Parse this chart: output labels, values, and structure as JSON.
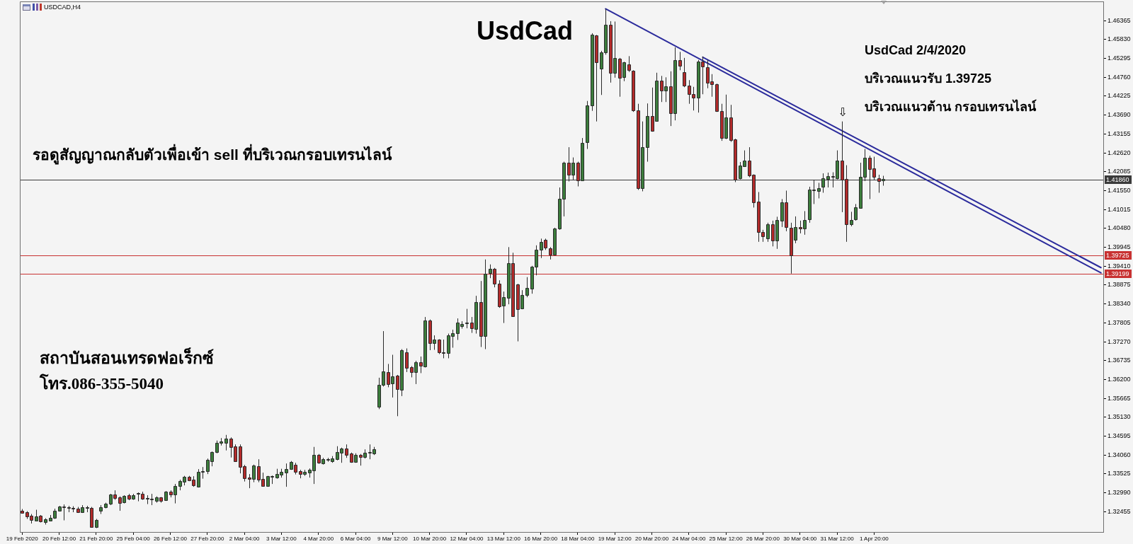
{
  "chart_data": {
    "type": "candlestick",
    "title": "UsdCad",
    "annotations": [
      "USDCAD,H4",
      "UsdCad 2/4/2020",
      "บริเวณแนวรับ 1.39725",
      "บริเวณแนวต้าน กรอบเทรนไลน์",
      "รอดูสัญญาณกลับตัวเพื่อเข้า sell ที่บริเวณกรอบเทรนไลน์",
      "สถาบันสอนเทรดฟอเร็กซ์",
      "โทร.086-355-5040",
      "⇩"
    ],
    "categories": [
      "19 Feb 2020",
      null,
      null,
      null,
      null,
      null,
      null,
      null,
      "20 Feb 12:00",
      null,
      null,
      null,
      null,
      null,
      null,
      null,
      "21 Feb 20:00",
      null,
      null,
      null,
      null,
      null,
      null,
      null,
      "25 Feb 04:00",
      null,
      null,
      null,
      null,
      null,
      null,
      null,
      "26 Feb 12:00",
      null,
      null,
      null,
      null,
      null,
      null,
      null,
      "27 Feb 20:00",
      null,
      null,
      null,
      null,
      null,
      null,
      null,
      "2 Mar 04:00",
      null,
      null,
      null,
      null,
      null,
      null,
      null,
      "3 Mar 12:00",
      null,
      null,
      null,
      null,
      null,
      null,
      null,
      "4 Mar 20:00",
      null,
      null,
      null,
      null,
      null,
      null,
      null,
      "6 Mar 04:00",
      null,
      null,
      null,
      null,
      null,
      null,
      null,
      "9 Mar 12:00",
      null,
      null,
      null,
      null,
      null,
      null,
      null,
      "10 Mar 20:00",
      null,
      null,
      null,
      null,
      null,
      null,
      null,
      "12 Mar 04:00",
      null,
      null,
      null,
      null,
      null,
      null,
      null,
      "13 Mar 12:00",
      null,
      null,
      null,
      null,
      null,
      null,
      null,
      "16 Mar 20:00",
      null,
      null,
      null,
      null,
      null,
      null,
      null,
      "18 Mar 04:00",
      null,
      null,
      null,
      null,
      null,
      null,
      null,
      "19 Mar 12:00",
      null,
      null,
      null,
      null,
      null,
      null,
      null,
      "20 Mar 20:00",
      null,
      null,
      null,
      null,
      null,
      null,
      null,
      "24 Mar 04:00",
      null,
      null,
      null,
      null,
      null,
      null,
      null,
      "25 Mar 12:00",
      null,
      null,
      null,
      null,
      null,
      null,
      null,
      "26 Mar 20:00",
      null,
      null,
      null,
      null,
      null,
      null,
      null,
      "30 Mar 04:00",
      null,
      null,
      null,
      null,
      null,
      null,
      null,
      "31 Mar 12:00",
      null,
      null,
      null,
      null,
      null,
      null,
      null,
      "1 Apr 20:00",
      null,
      null,
      null,
      null,
      null,
      null,
      null,
      null,
      null,
      null,
      null,
      null,
      null,
      null,
      null,
      null,
      null,
      null,
      null,
      null,
      null,
      null,
      null,
      null,
      null,
      null,
      null,
      null,
      null,
      null,
      null,
      null,
      null,
      null,
      null,
      null,
      null,
      null,
      null,
      null,
      null,
      null,
      null,
      null,
      null,
      null,
      null,
      null,
      null
    ],
    "ohlc": [
      [
        1.3249,
        1.3253,
        1.324,
        1.3242
      ],
      [
        1.3244,
        1.3247,
        1.3225,
        1.3232
      ],
      [
        1.3234,
        1.3239,
        1.3212,
        1.3222
      ],
      [
        1.322,
        1.3251,
        1.3219,
        1.3232
      ],
      [
        1.3234,
        1.3236,
        1.3215,
        1.3217
      ],
      [
        1.3215,
        1.3227,
        1.3209,
        1.3224
      ],
      [
        1.3221,
        1.3236,
        1.3219,
        1.3229
      ],
      [
        1.3227,
        1.3254,
        1.3225,
        1.3248
      ],
      [
        1.3247,
        1.3262,
        1.3246,
        1.326
      ],
      [
        1.326,
        1.3266,
        1.3221,
        1.3257
      ],
      [
        1.3258,
        1.3262,
        1.3244,
        1.3256
      ],
      [
        1.3257,
        1.3261,
        1.3244,
        1.3255
      ],
      [
        1.3255,
        1.3259,
        1.3242,
        1.3244
      ],
      [
        1.3244,
        1.3264,
        1.3242,
        1.3258
      ],
      [
        1.3257,
        1.3262,
        1.3244,
        1.3258
      ],
      [
        1.3257,
        1.3259,
        1.32,
        1.3203
      ],
      [
        1.3203,
        1.3225,
        1.3199,
        1.3223
      ],
      [
        1.3249,
        1.3264,
        1.3239,
        1.3259
      ],
      [
        1.3258,
        1.3271,
        1.3255,
        1.3269
      ],
      [
        1.3267,
        1.3296,
        1.3264,
        1.3294
      ],
      [
        1.3294,
        1.3306,
        1.3279,
        1.3284
      ],
      [
        1.3287,
        1.3289,
        1.3248,
        1.3271
      ],
      [
        1.3271,
        1.3292,
        1.3269,
        1.329
      ],
      [
        1.3292,
        1.3296,
        1.3278,
        1.3281
      ],
      [
        1.3281,
        1.3296,
        1.3279,
        1.3292
      ],
      [
        1.3296,
        1.33,
        1.3275,
        1.3298
      ],
      [
        1.3297,
        1.3302,
        1.3279,
        1.3282
      ],
      [
        1.3282,
        1.3292,
        1.3267,
        1.3284
      ],
      [
        1.3282,
        1.3296,
        1.3264,
        1.3281
      ],
      [
        1.3276,
        1.3289,
        1.3271,
        1.3286
      ],
      [
        1.3286,
        1.3287,
        1.3271,
        1.3276
      ],
      [
        1.3278,
        1.3304,
        1.3276,
        1.3302
      ],
      [
        1.3302,
        1.3306,
        1.3286,
        1.3294
      ],
      [
        1.3294,
        1.3324,
        1.3269,
        1.3319
      ],
      [
        1.3317,
        1.3336,
        1.3306,
        1.3332
      ],
      [
        1.3329,
        1.3347,
        1.332,
        1.3344
      ],
      [
        1.3344,
        1.3347,
        1.3332,
        1.3334
      ],
      [
        1.3336,
        1.3346,
        1.3316,
        1.332
      ],
      [
        1.3317,
        1.3366,
        1.3314,
        1.3359
      ],
      [
        1.3359,
        1.3372,
        1.3339,
        1.336
      ],
      [
        1.3359,
        1.3396,
        1.3352,
        1.3392
      ],
      [
        1.3387,
        1.3416,
        1.3374,
        1.3414
      ],
      [
        1.3414,
        1.3447,
        1.3411,
        1.344
      ],
      [
        1.3439,
        1.3454,
        1.3433,
        1.3444
      ],
      [
        1.3441,
        1.3463,
        1.3419,
        1.3453
      ],
      [
        1.3453,
        1.3456,
        1.3399,
        1.3429
      ],
      [
        1.3431,
        1.3436,
        1.3387,
        1.3389
      ],
      [
        1.3431,
        1.3436,
        1.3354,
        1.3372
      ],
      [
        1.3374,
        1.3378,
        1.3331,
        1.334
      ],
      [
        1.3342,
        1.3352,
        1.3312,
        1.3338
      ],
      [
        1.3338,
        1.3379,
        1.3329,
        1.3376
      ],
      [
        1.3374,
        1.3394,
        1.3329,
        1.3336
      ],
      [
        1.3338,
        1.3356,
        1.3318,
        1.3318
      ],
      [
        1.3318,
        1.3347,
        1.3316,
        1.3346
      ],
      [
        1.3345,
        1.3348,
        1.3324,
        1.3347
      ],
      [
        1.3342,
        1.3367,
        1.3339,
        1.3352
      ],
      [
        1.335,
        1.3367,
        1.3342,
        1.3359
      ],
      [
        1.3357,
        1.3382,
        1.3316,
        1.3367
      ],
      [
        1.3366,
        1.3389,
        1.3364,
        1.3386
      ],
      [
        1.3379,
        1.3384,
        1.3351,
        1.3359
      ],
      [
        1.336,
        1.3364,
        1.334,
        1.3351
      ],
      [
        1.3351,
        1.3364,
        1.3347,
        1.3358
      ],
      [
        1.3356,
        1.3368,
        1.3342,
        1.3364
      ],
      [
        1.3362,
        1.3429,
        1.3324,
        1.3406
      ],
      [
        1.3406,
        1.3409,
        1.3381,
        1.3384
      ],
      [
        1.3381,
        1.3398,
        1.3379,
        1.3394
      ],
      [
        1.3392,
        1.3398,
        1.3387,
        1.3394
      ],
      [
        1.3389,
        1.3403,
        1.3384,
        1.3397
      ],
      [
        1.3394,
        1.3431,
        1.3391,
        1.3414
      ],
      [
        1.3413,
        1.3427,
        1.3384,
        1.3425
      ],
      [
        1.3425,
        1.3436,
        1.3398,
        1.3407
      ],
      [
        1.341,
        1.3413,
        1.3384,
        1.3386
      ],
      [
        1.3386,
        1.3411,
        1.3384,
        1.3406
      ],
      [
        1.3406,
        1.3409,
        1.3376,
        1.3399
      ],
      [
        1.3401,
        1.3422,
        1.3396,
        1.3413
      ],
      [
        1.3413,
        1.3436,
        1.3394,
        1.3415
      ],
      [
        1.3409,
        1.3429,
        1.3406,
        1.3422
      ],
      [
        1.3543,
        1.3625,
        1.3536,
        1.3605
      ],
      [
        1.3603,
        1.3757,
        1.36,
        1.3642
      ],
      [
        1.3641,
        1.3664,
        1.3598,
        1.3607
      ],
      [
        1.3607,
        1.369,
        1.3569,
        1.3628
      ],
      [
        1.363,
        1.3633,
        1.3516,
        1.3591
      ],
      [
        1.3591,
        1.3706,
        1.3573,
        1.3703
      ],
      [
        1.3698,
        1.3708,
        1.3641,
        1.3653
      ],
      [
        1.3654,
        1.3658,
        1.3626,
        1.364
      ],
      [
        1.364,
        1.3673,
        1.3607,
        1.3669
      ],
      [
        1.3668,
        1.3685,
        1.3638,
        1.3658
      ],
      [
        1.3656,
        1.3797,
        1.3654,
        1.3787
      ],
      [
        1.3787,
        1.379,
        1.3703,
        1.3723
      ],
      [
        1.3724,
        1.3745,
        1.3704,
        1.3734
      ],
      [
        1.3733,
        1.3734,
        1.3692,
        1.3696
      ],
      [
        1.3697,
        1.3733,
        1.368,
        1.3695
      ],
      [
        1.3695,
        1.375,
        1.368,
        1.3745
      ],
      [
        1.3743,
        1.3761,
        1.371,
        1.3752
      ],
      [
        1.375,
        1.3793,
        1.3732,
        1.3781
      ],
      [
        1.3772,
        1.3785,
        1.3764,
        1.3778
      ],
      [
        1.3778,
        1.382,
        1.3765,
        1.3781
      ],
      [
        1.3781,
        1.3797,
        1.3752,
        1.3765
      ],
      [
        1.3763,
        1.3857,
        1.375,
        1.3839
      ],
      [
        1.3839,
        1.3899,
        1.3712,
        1.3743
      ],
      [
        1.3743,
        1.396,
        1.3706,
        1.392
      ],
      [
        1.3921,
        1.3946,
        1.3907,
        1.3934
      ],
      [
        1.3934,
        1.3936,
        1.3881,
        1.3892
      ],
      [
        1.3892,
        1.3901,
        1.3823,
        1.3827
      ],
      [
        1.3828,
        1.3869,
        1.378,
        1.3853
      ],
      [
        1.3852,
        1.3995,
        1.3833,
        1.395
      ],
      [
        1.395,
        1.3979,
        1.3799,
        1.38
      ],
      [
        1.389,
        1.3891,
        1.3728,
        1.382
      ],
      [
        1.382,
        1.3873,
        1.3819,
        1.3859
      ],
      [
        1.3859,
        1.391,
        1.3853,
        1.3879
      ],
      [
        1.3877,
        1.3942,
        1.3863,
        1.394
      ],
      [
        1.3939,
        1.4,
        1.3915,
        1.3988
      ],
      [
        1.3987,
        1.4019,
        1.3964,
        1.401
      ],
      [
        1.4015,
        1.4019,
        1.3987,
        1.3992
      ],
      [
        1.3992,
        1.3995,
        1.396,
        1.3974
      ],
      [
        1.3974,
        1.405,
        1.3974,
        1.4048
      ],
      [
        1.4047,
        1.4164,
        1.4044,
        1.4131
      ],
      [
        1.4131,
        1.4237,
        1.4082,
        1.4234
      ],
      [
        1.4234,
        1.4278,
        1.4181,
        1.4199
      ],
      [
        1.4201,
        1.4249,
        1.4186,
        1.4235
      ],
      [
        1.4235,
        1.4237,
        1.4167,
        1.4184
      ],
      [
        1.4184,
        1.4304,
        1.4182,
        1.4291
      ],
      [
        1.4291,
        1.4409,
        1.4273,
        1.4396
      ],
      [
        1.4396,
        1.4601,
        1.4381,
        1.4596
      ],
      [
        1.4595,
        1.4596,
        1.4351,
        1.4518
      ],
      [
        1.45,
        1.4551,
        1.4426,
        1.4547
      ],
      [
        1.4547,
        1.467,
        1.454,
        1.4625
      ],
      [
        1.4625,
        1.4635,
        1.4461,
        1.4488
      ],
      [
        1.4489,
        1.4634,
        1.4475,
        1.4531
      ],
      [
        1.4529,
        1.4531,
        1.4421,
        1.4475
      ],
      [
        1.4475,
        1.452,
        1.4465,
        1.4518
      ],
      [
        1.4513,
        1.4536,
        1.4491,
        1.4496
      ],
      [
        1.4495,
        1.4496,
        1.4378,
        1.4382
      ],
      [
        1.4382,
        1.4401,
        1.4157,
        1.4161
      ],
      [
        1.4162,
        1.4351,
        1.4153,
        1.4278
      ],
      [
        1.4278,
        1.4402,
        1.4237,
        1.4366
      ],
      [
        1.4366,
        1.4447,
        1.4322,
        1.4324
      ],
      [
        1.4353,
        1.4489,
        1.4351,
        1.4467
      ],
      [
        1.4467,
        1.448,
        1.4406,
        1.4438
      ],
      [
        1.4438,
        1.4476,
        1.4406,
        1.4451
      ],
      [
        1.4451,
        1.4493,
        1.4338,
        1.4374
      ],
      [
        1.4374,
        1.4561,
        1.4354,
        1.4525
      ],
      [
        1.4525,
        1.4548,
        1.4496,
        1.4509
      ],
      [
        1.4491,
        1.4531,
        1.4448,
        1.4453
      ],
      [
        1.4453,
        1.4468,
        1.4401,
        1.4429
      ],
      [
        1.4429,
        1.4449,
        1.4382,
        1.4418
      ],
      [
        1.4418,
        1.4525,
        1.4376,
        1.452
      ],
      [
        1.452,
        1.4535,
        1.4428,
        1.4505
      ],
      [
        1.4505,
        1.4525,
        1.4445,
        1.4461
      ],
      [
        1.4465,
        1.4485,
        1.4421,
        1.4456
      ],
      [
        1.4456,
        1.4458,
        1.4378,
        1.438
      ],
      [
        1.438,
        1.4401,
        1.4296,
        1.4304
      ],
      [
        1.4304,
        1.4427,
        1.4301,
        1.4362
      ],
      [
        1.4362,
        1.4398,
        1.4293,
        1.4298
      ],
      [
        1.4301,
        1.4302,
        1.4179,
        1.4187
      ],
      [
        1.4189,
        1.4236,
        1.4187,
        1.4226
      ],
      [
        1.4224,
        1.4269,
        1.4222,
        1.424
      ],
      [
        1.424,
        1.4278,
        1.4193,
        1.4197
      ],
      [
        1.42,
        1.4201,
        1.4107,
        1.4122
      ],
      [
        1.4124,
        1.4151,
        1.401,
        1.4037
      ],
      [
        1.4037,
        1.4044,
        1.401,
        1.4024
      ],
      [
        1.4019,
        1.4064,
        1.401,
        1.406
      ],
      [
        1.406,
        1.407,
        1.3997,
        1.4014
      ],
      [
        1.4014,
        1.4081,
        1.399,
        1.4072
      ],
      [
        1.4068,
        1.4131,
        1.4052,
        1.4121
      ],
      [
        1.4121,
        1.4155,
        1.404,
        1.405
      ],
      [
        1.405,
        1.4064,
        1.392,
        1.3972
      ],
      [
        1.4015,
        1.4082,
        1.4006,
        1.4052
      ],
      [
        1.4052,
        1.407,
        1.4034,
        1.4048
      ],
      [
        1.4048,
        1.4097,
        1.403,
        1.4072
      ],
      [
        1.4072,
        1.4166,
        1.4064,
        1.4157
      ],
      [
        1.4157,
        1.4186,
        1.4117,
        1.4155
      ],
      [
        1.4153,
        1.4177,
        1.4133,
        1.4162
      ],
      [
        1.4166,
        1.4204,
        1.4149,
        1.4191
      ],
      [
        1.4189,
        1.4206,
        1.4164,
        1.4197
      ],
      [
        1.4196,
        1.4207,
        1.4164,
        1.4194
      ],
      [
        1.4191,
        1.4269,
        1.4187,
        1.4241
      ],
      [
        1.4241,
        1.4351,
        1.4094,
        1.4187
      ],
      [
        1.4187,
        1.4227,
        1.401,
        1.4059
      ],
      [
        1.4059,
        1.4095,
        1.4054,
        1.4072
      ],
      [
        1.4072,
        1.4117,
        1.407,
        1.4107
      ],
      [
        1.4107,
        1.4234,
        1.4104,
        1.4195
      ],
      [
        1.4195,
        1.4273,
        1.4182,
        1.4249
      ],
      [
        1.4249,
        1.4254,
        1.4131,
        1.4217
      ],
      [
        1.4219,
        1.4251,
        1.4186,
        1.4194
      ],
      [
        1.4191,
        1.42,
        1.4149,
        1.4182
      ],
      [
        1.4182,
        1.4197,
        1.4169,
        1.4187
      ],
      null,
      null,
      null,
      null,
      null,
      null,
      null,
      null,
      null,
      null,
      null,
      null,
      null,
      null,
      null,
      null,
      null,
      null,
      null,
      null,
      null,
      null,
      null,
      null,
      null,
      null,
      null,
      null,
      null,
      null,
      null,
      null,
      null,
      null,
      null,
      null,
      null,
      null,
      null,
      null,
      null,
      null,
      null,
      null,
      null,
      null,
      null
    ],
    "colors": [
      "#b22b2b",
      "#b22b2b",
      "#b22b2b",
      "#3c7d3c",
      "#b22b2b",
      "#3c7d3c",
      "#3c7d3c",
      "#3c7d3c",
      "#3c7d3c",
      "#b22b2b",
      "#b22b2b",
      "#b22b2b",
      "#b22b2b",
      "#3c7d3c",
      "#3c7d3c",
      "#b22b2b",
      "#3c7d3c",
      "#3c7d3c",
      "#3c7d3c",
      "#3c7d3c",
      "#b22b2b",
      "#b22b2b",
      "#3c7d3c",
      "#b22b2b",
      "#3c7d3c",
      "#3c7d3c",
      "#b22b2b",
      "#3c7d3c",
      "#b22b2b",
      "#3c7d3c",
      "#b22b2b",
      "#3c7d3c",
      "#b22b2b",
      "#3c7d3c",
      "#3c7d3c",
      "#3c7d3c",
      "#b22b2b",
      "#b22b2b",
      "#3c7d3c",
      "#3c7d3c",
      "#3c7d3c",
      "#3c7d3c",
      "#3c7d3c",
      "#3c7d3c",
      "#3c7d3c",
      "#b22b2b",
      "#b22b2b",
      "#b22b2b",
      "#b22b2b",
      "#b22b2b",
      "#3c7d3c",
      "#b22b2b",
      "#b22b2b",
      "#3c7d3c",
      "#3c7d3c",
      "#3c7d3c",
      "#3c7d3c",
      "#3c7d3c",
      "#3c7d3c",
      "#b22b2b",
      "#b22b2b",
      "#3c7d3c",
      "#3c7d3c",
      "#3c7d3c",
      "#b22b2b",
      "#3c7d3c",
      "#3c7d3c",
      "#3c7d3c",
      "#3c7d3c",
      "#3c7d3c",
      "#b22b2b",
      "#b22b2b",
      "#3c7d3c",
      "#b22b2b",
      "#3c7d3c",
      "#3c7d3c",
      "#3c7d3c",
      "#3c7d3c",
      "#3c7d3c",
      "#b22b2b",
      "#3c7d3c",
      "#b22b2b",
      "#3c7d3c",
      "#b22b2b",
      "#b22b2b",
      "#3c7d3c",
      "#b22b2b",
      "#3c7d3c",
      "#b22b2b",
      "#3c7d3c",
      "#b22b2b",
      "#b22b2b",
      "#3c7d3c",
      "#3c7d3c",
      "#3c7d3c",
      "#3c7d3c",
      "#3c7d3c",
      "#b22b2b",
      "#3c7d3c",
      "#b22b2b",
      "#3c7d3c",
      "#3c7d3c",
      "#b22b2b",
      "#b22b2b",
      "#3c7d3c",
      "#3c7d3c",
      "#b22b2b",
      "#b22b2b",
      "#3c7d3c",
      "#3c7d3c",
      "#3c7d3c",
      "#3c7d3c",
      "#3c7d3c",
      "#b22b2b",
      "#b22b2b",
      "#3c7d3c",
      "#3c7d3c",
      "#3c7d3c",
      "#b22b2b",
      "#3c7d3c",
      "#b22b2b",
      "#3c7d3c",
      "#3c7d3c",
      "#3c7d3c",
      "#b22b2b",
      "#3c7d3c",
      "#3c7d3c",
      "#b22b2b",
      "#3c7d3c",
      "#b22b2b",
      "#3c7d3c",
      "#b22b2b",
      "#b22b2b",
      "#b22b2b",
      "#3c7d3c",
      "#3c7d3c",
      "#b22b2b",
      "#3c7d3c",
      "#b22b2b",
      "#3c7d3c",
      "#b22b2b",
      "#3c7d3c",
      "#b22b2b",
      "#b22b2b",
      "#b22b2b",
      "#b22b2b",
      "#3c7d3c",
      "#b22b2b",
      "#b22b2b",
      "#b22b2b",
      "#b22b2b",
      "#b22b2b",
      "#3c7d3c",
      "#b22b2b",
      "#b22b2b",
      "#3c7d3c",
      "#3c7d3c",
      "#b22b2b",
      "#b22b2b",
      "#b22b2b",
      "#b22b2b",
      "#3c7d3c",
      "#b22b2b",
      "#3c7d3c",
      "#3c7d3c",
      "#b22b2b",
      "#b22b2b",
      "#3c7d3c",
      "#b22b2b",
      "#3c7d3c",
      "#3c7d3c",
      "#b22b2b",
      "#3c7d3c",
      "#3c7d3c",
      "#3c7d3c",
      "#b22b2b",
      "#3c7d3c",
      "#b22b2b",
      "#b22b2b",
      "#3c7d3c",
      "#3c7d3c",
      "#3c7d3c",
      "#3c7d3c",
      "#b22b2b",
      "#b22b2b",
      "#b22b2b",
      "#3c7d3c",
      null,
      null,
      null,
      null,
      null,
      null,
      null,
      null,
      null,
      null,
      null,
      null,
      null,
      null,
      null,
      null,
      null,
      null,
      null,
      null,
      null,
      null,
      null,
      null,
      null,
      null,
      null,
      null,
      null,
      null,
      null,
      null,
      null,
      null,
      null,
      null,
      null,
      null,
      null,
      null,
      null,
      null,
      null,
      null,
      null,
      null,
      null
    ],
    "series": [
      {
        "type": "line",
        "color": "#2b2b9c",
        "values": [
          null,
          null,
          null,
          null,
          null,
          null,
          null,
          null,
          null,
          null,
          null,
          null,
          null,
          null,
          null,
          null,
          null,
          null,
          null,
          null,
          null,
          null,
          null,
          null,
          null,
          null,
          null,
          null,
          null,
          null,
          null,
          null,
          null,
          null,
          null,
          null,
          null,
          null,
          null,
          null,
          null,
          null,
          null,
          null,
          null,
          null,
          null,
          null,
          null,
          null,
          null,
          null,
          null,
          null,
          null,
          null,
          null,
          null,
          null,
          null,
          null,
          null,
          null,
          null,
          null,
          null,
          null,
          null,
          null,
          null,
          null,
          null,
          null,
          null,
          null,
          null,
          null,
          null,
          null,
          null,
          null,
          null,
          null,
          null,
          null,
          null,
          null,
          null,
          null,
          null,
          null,
          null,
          null,
          null,
          null,
          null,
          null,
          null,
          null,
          null,
          null,
          null,
          null,
          null,
          null,
          null,
          null,
          null,
          null,
          null,
          null,
          null,
          null,
          null,
          null,
          null,
          null,
          null,
          null,
          null,
          null,
          null,
          null,
          null,
          null,
          null,
          1.467,
          null,
          null,
          null,
          null,
          null,
          null,
          null,
          null,
          null,
          null,
          null,
          null,
          null,
          null,
          null,
          null,
          null,
          null,
          null,
          null,
          null,
          null,
          null,
          null,
          null,
          null,
          null,
          null,
          null,
          null,
          null,
          null,
          null,
          null,
          null,
          null,
          null,
          null,
          null,
          null,
          null,
          null,
          null,
          null,
          null,
          null,
          null,
          null,
          null,
          null,
          null,
          null,
          null,
          null,
          null,
          null,
          null,
          null,
          null,
          null,
          null,
          null,
          null,
          null,
          null,
          null,
          null,
          null,
          null,
          null,
          null,
          null,
          null,
          null,
          null,
          null,
          null,
          null,
          null,
          null,
          null,
          null,
          null,
          null,
          null,
          null,
          null,
          null,
          null,
          null,
          null,
          null,
          null,
          null,
          null,
          null,
          null,
          null,
          null,
          null,
          null,
          null,
          null,
          null,
          null,
          null,
          1.3922
        ]
      },
      {
        "type": "line",
        "color": "#2b2b9c",
        "values": [
          null,
          null,
          null,
          null,
          null,
          null,
          null,
          null,
          null,
          null,
          null,
          null,
          null,
          null,
          null,
          null,
          null,
          null,
          null,
          null,
          null,
          null,
          null,
          null,
          null,
          null,
          null,
          null,
          null,
          null,
          null,
          null,
          null,
          null,
          null,
          null,
          null,
          null,
          null,
          null,
          null,
          null,
          null,
          null,
          null,
          null,
          null,
          null,
          null,
          null,
          null,
          null,
          null,
          null,
          null,
          null,
          null,
          null,
          null,
          null,
          null,
          null,
          null,
          null,
          null,
          null,
          null,
          null,
          null,
          null,
          null,
          null,
          null,
          null,
          null,
          null,
          null,
          null,
          null,
          null,
          null,
          null,
          null,
          null,
          null,
          null,
          null,
          null,
          null,
          null,
          null,
          null,
          null,
          null,
          null,
          null,
          null,
          null,
          null,
          null,
          null,
          null,
          null,
          null,
          null,
          null,
          null,
          null,
          null,
          null,
          null,
          null,
          null,
          null,
          null,
          null,
          null,
          null,
          null,
          null,
          null,
          null,
          null,
          null,
          null,
          null,
          null,
          null,
          null,
          null,
          null,
          null,
          null,
          null,
          null,
          null,
          null,
          null,
          null,
          null,
          null,
          null,
          null,
          null,
          null,
          null,
          null,
          1.4533,
          null,
          null,
          null,
          null,
          null,
          null,
          null,
          null,
          null,
          null,
          null,
          null,
          null,
          null,
          null,
          null,
          null,
          null,
          null,
          null,
          null,
          null,
          null,
          null,
          null,
          null,
          null,
          null,
          null,
          null,
          null,
          null,
          null,
          null,
          null,
          null,
          null,
          null,
          null,
          null,
          null,
          null,
          null,
          null,
          null,
          null,
          null,
          null,
          null,
          null,
          null,
          null,
          null,
          null,
          null,
          null,
          null,
          null,
          null,
          null,
          null,
          null,
          null,
          null,
          null,
          null,
          null,
          null,
          null,
          null,
          null,
          null,
          null,
          null,
          null,
          null,
          null,
          null,
          null,
          null,
          null,
          null,
          null,
          null,
          null,
          1.3937
        ]
      }
    ],
    "ylim": [
      1.3188,
      1.4691
    ],
    "yticks": [
      1.32455,
      {
        "value": 1.3299,
        "label": "1.32990"
      },
      1.33525,
      {
        "value": 1.3406,
        "label": "1.34060"
      },
      1.34595,
      {
        "value": 1.3513,
        "label": "1.35130"
      },
      1.35665,
      {
        "value": 1.362,
        "label": "1.36200"
      },
      1.36735,
      {
        "value": 1.3727,
        "label": "1.37270"
      },
      1.37805,
      {
        "value": 1.3834,
        "label": "1.38340"
      },
      1.38875,
      {
        "value": 1.3941,
        "label": "1.39410"
      },
      1.39945,
      {
        "value": 1.4048,
        "label": "1.40480"
      },
      1.41015,
      {
        "value": 1.4155,
        "label": "1.41550"
      },
      1.42085,
      {
        "value": 1.4262,
        "label": "1.42620"
      },
      1.43155,
      {
        "value": 1.4369,
        "label": "1.43690"
      },
      1.44225,
      {
        "value": 1.4476,
        "label": "1.44760"
      },
      1.45295,
      {
        "value": 1.4583,
        "label": "1.45830"
      },
      1.46365
    ],
    "ref_lines": [
      {
        "axis": "y",
        "value": 1.4186,
        "label": "1.41860",
        "color": "#3a3a3a"
      },
      {
        "axis": "y",
        "value": 1.39725,
        "label": "1.39725",
        "color": "#c83232"
      },
      {
        "axis": "y",
        "value": 1.39199,
        "label": "1.39199",
        "color": "#c83232"
      }
    ]
  }
}
